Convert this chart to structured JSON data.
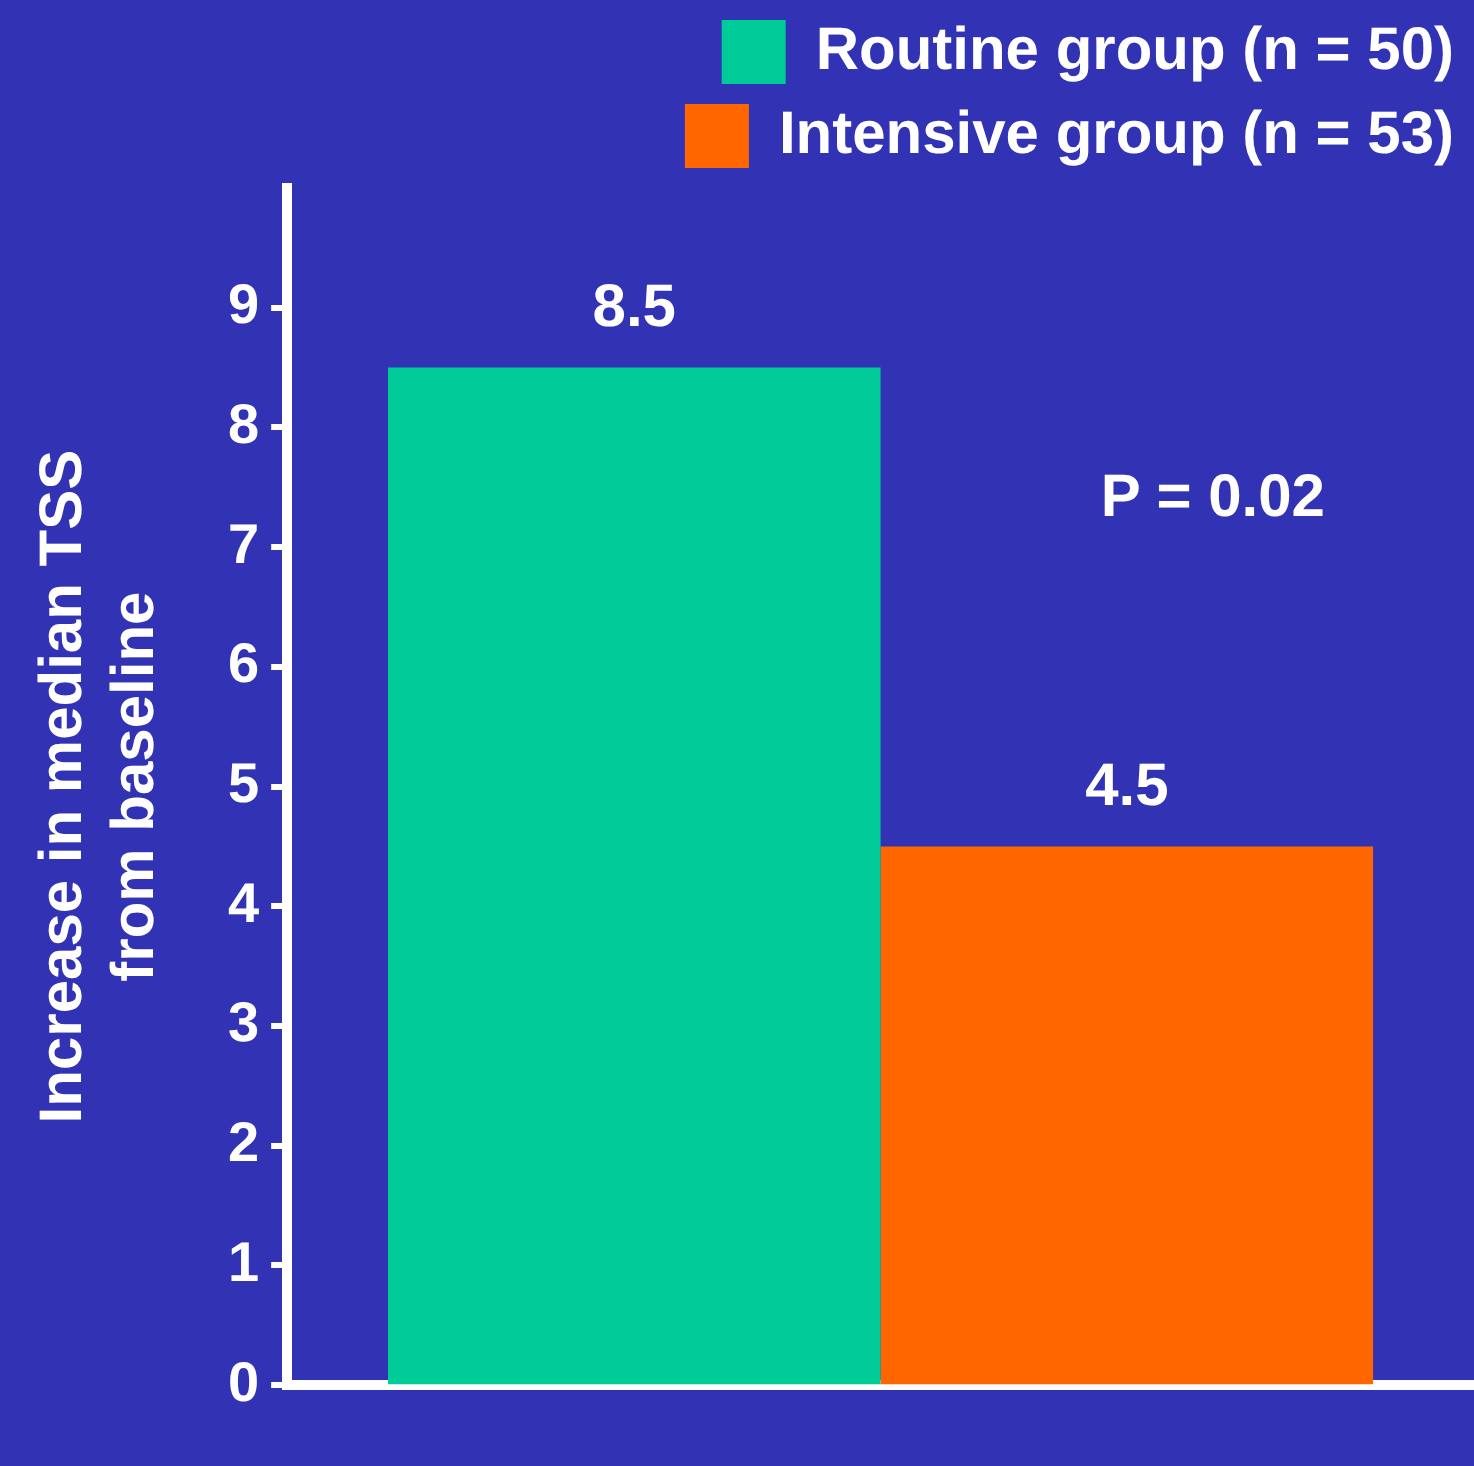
{
  "chart_data": {
    "type": "bar",
    "ylabel": "Increase in median TSS\nfrom baseline",
    "categories": [
      null
    ],
    "series": [
      {
        "name": "Routine group (n = 50)",
        "color": "#00cc99",
        "values": [
          8.5
        ]
      },
      {
        "name": "Intensive group (n = 53)",
        "color": "#ff6600",
        "values": [
          4.5
        ]
      }
    ],
    "ylim": [
      0,
      10
    ],
    "yticks": [
      0,
      1,
      2,
      3,
      4,
      5,
      6,
      7,
      8,
      9
    ],
    "grid": false,
    "legend": "top right",
    "data_labels": true,
    "annotations": [
      "P = 0.02"
    ]
  }
}
